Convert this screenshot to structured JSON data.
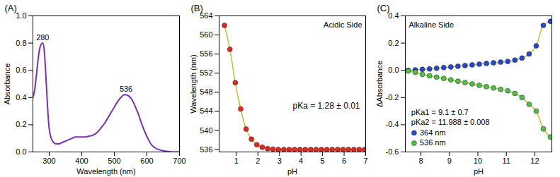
{
  "chart_data": [
    {
      "type": "line",
      "title": "(A)",
      "x_label": "Wavelength (nm)",
      "y_label": "Absorbance",
      "xlim": [
        250,
        700
      ],
      "xticks": [
        300,
        400,
        500,
        600,
        700
      ],
      "ylim": [
        0,
        1.0
      ],
      "yticks": [
        {
          "value": 0,
          "label": "0.0"
        },
        {
          "value": 0.2,
          "label": "0.2"
        },
        {
          "value": 0.4,
          "label": "0.4"
        },
        {
          "value": 0.6,
          "label": "0.6"
        },
        {
          "value": 0.8,
          "label": "0.8"
        },
        {
          "value": 1.0,
          "label": "1.0"
        }
      ],
      "grid": false,
      "x": [
        250,
        255,
        260,
        265,
        270,
        275,
        280,
        285,
        290,
        295,
        300,
        310,
        320,
        330,
        340,
        350,
        360,
        370,
        380,
        390,
        400,
        410,
        420,
        430,
        440,
        450,
        460,
        470,
        480,
        490,
        500,
        510,
        520,
        530,
        536,
        545,
        555,
        565,
        575,
        585,
        595,
        605,
        615,
        625,
        640,
        660,
        680,
        700
      ],
      "series": [
        {
          "type": "line",
          "color": "#7a2fbf",
          "values": [
            0.4,
            0.45,
            0.55,
            0.66,
            0.75,
            0.79,
            0.8,
            0.74,
            0.55,
            0.33,
            0.17,
            0.08,
            0.06,
            0.06,
            0.07,
            0.08,
            0.09,
            0.1,
            0.11,
            0.11,
            0.11,
            0.11,
            0.115,
            0.12,
            0.13,
            0.15,
            0.18,
            0.21,
            0.25,
            0.29,
            0.33,
            0.37,
            0.4,
            0.42,
            0.42,
            0.41,
            0.38,
            0.33,
            0.27,
            0.2,
            0.14,
            0.09,
            0.05,
            0.03,
            0.015,
            0.005,
            0.0,
            0.0
          ]
        }
      ],
      "annotations": [
        {
          "text": "280",
          "x": 280,
          "y": 0.8
        },
        {
          "text": "536",
          "x": 536,
          "y": 0.42
        }
      ]
    },
    {
      "type": "scatter",
      "title": "(B)",
      "x_label": "pH",
      "y_label": "Wavelength (nm)",
      "xlim": [
        0.2,
        7.0
      ],
      "xticks": [
        1,
        2,
        3,
        4,
        5,
        6,
        7
      ],
      "ylim": [
        535.5,
        564
      ],
      "yticks": [
        536,
        540,
        544,
        548,
        552,
        556,
        560,
        564
      ],
      "grid": false,
      "x": [
        0.45,
        0.7,
        0.95,
        1.2,
        1.45,
        1.7,
        1.95,
        2.2,
        2.45,
        2.7,
        2.95,
        3.2,
        3.45,
        3.7,
        3.95,
        4.2,
        4.45,
        4.7,
        4.95,
        5.2,
        5.45,
        5.7,
        5.95,
        6.2,
        6.45,
        6.7,
        6.95
      ],
      "series": [
        {
          "type": "line",
          "color": "#c9c23a",
          "values": [
            562,
            557,
            550,
            544.5,
            540.3,
            538.2,
            537.0,
            536.5,
            536.2,
            536.1,
            536,
            536,
            536,
            536,
            536,
            536,
            536,
            536,
            536,
            536,
            536,
            536,
            536,
            536,
            536,
            536,
            536
          ]
        },
        {
          "type": "scatter",
          "color": "#e8261e",
          "marker": "circle",
          "values": [
            562,
            557,
            550,
            544.5,
            540.3,
            538.2,
            537.0,
            536.5,
            536.2,
            536.1,
            536,
            536,
            536,
            536,
            536,
            536,
            536,
            536,
            536,
            536,
            536,
            536,
            536,
            536,
            536,
            536,
            536
          ]
        }
      ],
      "annotations": [
        {
          "text": "Acidic Side"
        },
        {
          "text": "pKa = 1.28 ± 0.01"
        }
      ]
    },
    {
      "type": "scatter",
      "title": "(C)",
      "x_label": "pH",
      "y_label": "ΔAbsorbance",
      "xlim": [
        7.45,
        12.6
      ],
      "xticks": [
        8,
        9,
        10,
        11,
        12
      ],
      "ylim": [
        -0.6,
        0.4
      ],
      "yticks": [
        {
          "value": -0.6,
          "label": "-0.6"
        },
        {
          "value": -0.4,
          "label": "-0.4"
        },
        {
          "value": -0.2,
          "label": "-0.2"
        },
        {
          "value": 0,
          "label": "0.0"
        },
        {
          "value": 0.2,
          "label": "0.2"
        },
        {
          "value": 0.4,
          "label": "0.4"
        }
      ],
      "grid": false,
      "legend": "bottom-left",
      "x": [
        7.55,
        7.8,
        8.05,
        8.3,
        8.55,
        8.8,
        9.05,
        9.3,
        9.55,
        9.8,
        10.05,
        10.3,
        10.55,
        10.8,
        11.05,
        11.3,
        11.55,
        11.8,
        12.05,
        12.3,
        12.55
      ],
      "series": [
        {
          "type": "line",
          "color": "#c9c23a",
          "values": [
            0.0,
            0.003,
            0.007,
            0.01,
            0.015,
            0.02,
            0.025,
            0.03,
            0.035,
            0.04,
            0.045,
            0.05,
            0.055,
            0.06,
            0.065,
            0.075,
            0.09,
            0.12,
            0.18,
            0.33,
            0.36
          ]
        },
        {
          "type": "line",
          "color": "#c9c23a",
          "values": [
            -0.005,
            -0.015,
            -0.03,
            -0.04,
            -0.05,
            -0.06,
            -0.07,
            -0.08,
            -0.09,
            -0.1,
            -0.11,
            -0.12,
            -0.13,
            -0.14,
            -0.15,
            -0.17,
            -0.2,
            -0.25,
            -0.3,
            -0.43,
            -0.49
          ]
        },
        {
          "type": "scatter",
          "name": "364 nm",
          "color": "#2346d6",
          "marker": "circle",
          "values": [
            0.0,
            0.003,
            0.007,
            0.01,
            0.015,
            0.02,
            0.025,
            0.03,
            0.035,
            0.04,
            0.045,
            0.05,
            0.055,
            0.06,
            0.065,
            0.075,
            0.09,
            0.12,
            0.18,
            0.33,
            0.36
          ]
        },
        {
          "type": "scatter",
          "name": "536 nm",
          "color": "#4cc24c",
          "marker": "circle",
          "values": [
            -0.005,
            -0.015,
            -0.03,
            -0.04,
            -0.05,
            -0.06,
            -0.07,
            -0.08,
            -0.09,
            -0.1,
            -0.11,
            -0.12,
            -0.13,
            -0.14,
            -0.15,
            -0.17,
            -0.2,
            -0.25,
            -0.3,
            -0.43,
            -0.49
          ]
        }
      ],
      "annotations": [
        {
          "text": "Alkaline Side"
        },
        {
          "text": "pKa1 = 9.1 ± 0.7"
        },
        {
          "text": "pKa2 = 11.988 ± 0.008"
        }
      ]
    }
  ]
}
